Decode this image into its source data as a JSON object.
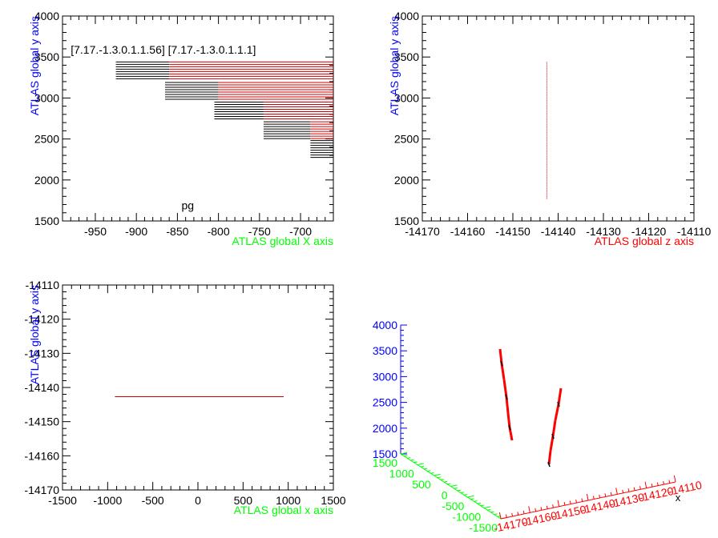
{
  "colors": {
    "blue": "#0000ff",
    "green": "#00ff00",
    "red": "#ff0000",
    "darkred": "#cc0000",
    "black": "#000000"
  },
  "chart_data": [
    {
      "type": "line",
      "title": "",
      "xlabel": "ATLAS global X axis",
      "ylabel": "ATLAS global y axis",
      "xlim": [
        -990,
        -660
      ],
      "ylim": [
        1500,
        4000
      ],
      "x_ticks": [
        -950,
        -900,
        -850,
        -800,
        -750,
        -700
      ],
      "y_ticks": [
        1500,
        2000,
        2500,
        3000,
        3500,
        4000
      ],
      "annotations": [
        {
          "text": "[7.17.-1.3.0.1.1.56] [7.17.-1.3.0.1.1.1]",
          "x": -980,
          "y": 3540
        },
        {
          "text": "pg",
          "x": -845,
          "y": 1640
        }
      ],
      "stair_blocks": [
        {
          "x_start": -925,
          "x_end": -660,
          "y_top": 3440,
          "y_bottom": 3230,
          "black_until": -860
        },
        {
          "x_start": -865,
          "x_end": -660,
          "y_top": 3190,
          "y_bottom": 2970,
          "black_until": -800
        },
        {
          "x_start": -805,
          "x_end": -660,
          "y_top": 2950,
          "y_bottom": 2730,
          "black_until": -745
        },
        {
          "x_start": -745,
          "x_end": -660,
          "y_top": 2710,
          "y_bottom": 2500,
          "black_until": -688
        },
        {
          "x_start": -688,
          "x_end": -660,
          "y_top": 2480,
          "y_bottom": 2260,
          "black_until": -660
        }
      ]
    },
    {
      "type": "line",
      "title": "",
      "xlabel": "ATLAS global z axis",
      "ylabel": "ATLAS global y axis",
      "xlim": [
        -14170,
        -14110
      ],
      "ylim": [
        1500,
        4000
      ],
      "x_ticks": [
        -14170,
        -14160,
        -14150,
        -14140,
        -14130,
        -14120,
        -14110
      ],
      "y_ticks": [
        1500,
        2000,
        2500,
        3000,
        3500,
        4000
      ],
      "series": [
        {
          "x": [
            -14142.5,
            -14142.5
          ],
          "y": [
            1770,
            3450
          ]
        }
      ]
    },
    {
      "type": "line",
      "title": "",
      "xlabel": "ATLAS global x axis",
      "ylabel": "ATLAS global y axis",
      "xlim": [
        -1500,
        1500
      ],
      "ylim": [
        -14170,
        -14110
      ],
      "x_ticks": [
        -1500,
        -1000,
        -500,
        0,
        500,
        1000,
        1500
      ],
      "y_ticks": [
        -14170,
        -14160,
        -14150,
        -14140,
        -14130,
        -14120,
        -14110
      ],
      "series": [
        {
          "x": [
            -920,
            950
          ],
          "y": [
            -14142.7,
            -14142.7
          ]
        }
      ]
    },
    {
      "type": "scatter",
      "title": "",
      "z_ticks": [
        1500,
        2000,
        2500,
        3000,
        3500,
        4000
      ],
      "y_ticks": [
        1500,
        1000,
        500,
        0,
        -500,
        -1000,
        -1500
      ],
      "x_ticks": [
        -14170,
        -14160,
        -14150,
        -14140,
        -14130,
        -14120,
        -14110
      ],
      "corner_label": "x",
      "series": [
        {
          "name": "",
          "points": [
            [
              624,
              436
            ],
            [
              626,
              454
            ],
            [
              629,
              474
            ],
            [
              632,
              496
            ],
            [
              634,
              516
            ],
            [
              636,
              534
            ],
            [
              639,
              550
            ]
          ]
        },
        {
          "name": "",
          "points": [
            [
              700,
              485
            ],
            [
              697,
              505
            ],
            [
              693,
              525
            ],
            [
              690,
              545
            ],
            [
              687,
              563
            ],
            [
              685,
              580
            ]
          ]
        }
      ]
    }
  ]
}
